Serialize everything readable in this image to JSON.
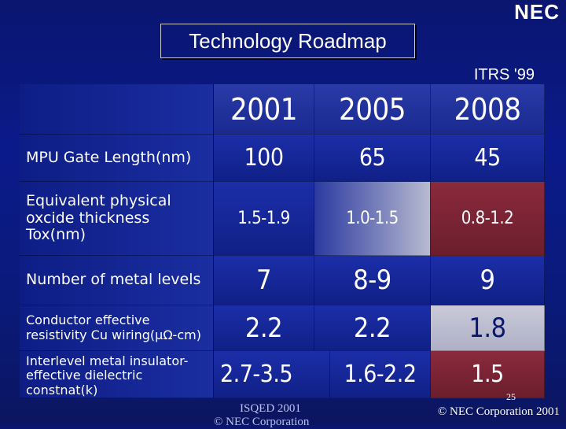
{
  "logo": "NEC",
  "title": "Technology Roadmap",
  "source": "ITRS '99",
  "table": {
    "years": [
      "2001",
      "2005",
      "2008"
    ],
    "rows": [
      {
        "label": "MPU Gate Length(nm)",
        "values": [
          "100",
          "65",
          "45"
        ]
      },
      {
        "label": "Equivalent physical oxcide thickness Tox(nm)",
        "values": [
          "1.5-1.9",
          "1.0-1.5",
          "0.8-1.2"
        ]
      },
      {
        "label": "Number of metal levels",
        "values": [
          "7",
          "8-9",
          "9"
        ]
      },
      {
        "label": "Conductor effective resistivity Cu wiring(μΩ-cm)",
        "values": [
          "2.2",
          "2.2",
          "1.8"
        ]
      },
      {
        "label": "Interlevel metal insulator- effective dielectric constnat(k)",
        "values": [
          "2.7-3.5",
          "1.6-2.2",
          "1.5"
        ]
      }
    ]
  },
  "footer": {
    "left_line1": "ISQED 2001",
    "left_line2": "© NEC Corporation",
    "right": "© NEC Corporation 2001",
    "page": "25"
  }
}
